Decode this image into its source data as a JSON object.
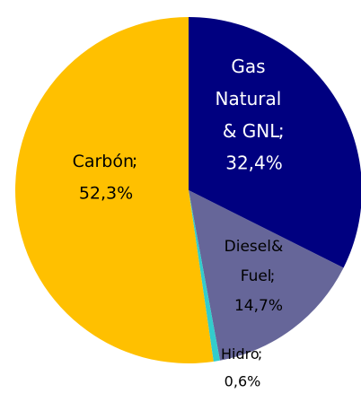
{
  "chart_data": {
    "type": "pie",
    "categories": [
      "Gas Natural & GNL",
      "Diesel& Fuel",
      "Hidro",
      "Carbón"
    ],
    "values": [
      32.4,
      14.7,
      0.6,
      52.3
    ],
    "value_labels": [
      "32,4%",
      "14,7%",
      "0,6%",
      "52,3%"
    ],
    "label_separator": ";",
    "colors": [
      "#000080",
      "#666699",
      "#33CCCC",
      "#FFC000"
    ]
  }
}
